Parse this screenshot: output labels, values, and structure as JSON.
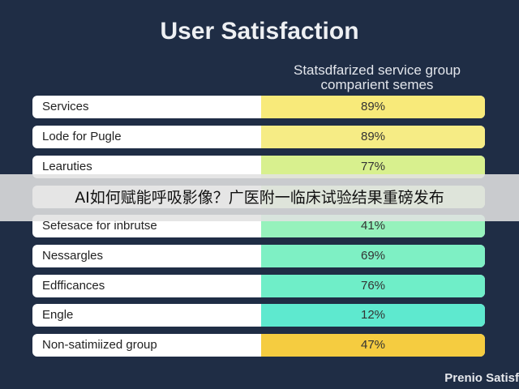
{
  "chart_data": {
    "type": "table",
    "title": "User Satisfaction",
    "column_header": "Statsdfarized service group comparient semes",
    "rows": [
      {
        "label": "Services",
        "value": "89%"
      },
      {
        "label": "Lode for Pugle",
        "value": "89%"
      },
      {
        "label": "Learuties",
        "value": "77%"
      },
      {
        "label": "",
        "value": ""
      },
      {
        "label": "Sefesace for inbrutse",
        "value": "41%"
      },
      {
        "label": "Nessargles",
        "value": "69%"
      },
      {
        "label": "Edfficances",
        "value": "76%"
      },
      {
        "label": "Engle",
        "value": "12%"
      },
      {
        "label": "Non-satimiized group",
        "value": "47%"
      }
    ],
    "colors": {
      "background": "#1f2d45",
      "label_cell": "#ffffff",
      "value_cells": [
        "#f8ea7a",
        "#f6ec85",
        "#d8f08e",
        "#c2f0a0",
        "#96f2bc",
        "#7ef0c4",
        "#6feec8",
        "#5ee9cf",
        "#f5cc40"
      ]
    }
  },
  "overlay_caption": "AI如何赋能呼吸影像？广医附一临床试验结果重磅发布",
  "footer_text": "Prenio Satisf"
}
